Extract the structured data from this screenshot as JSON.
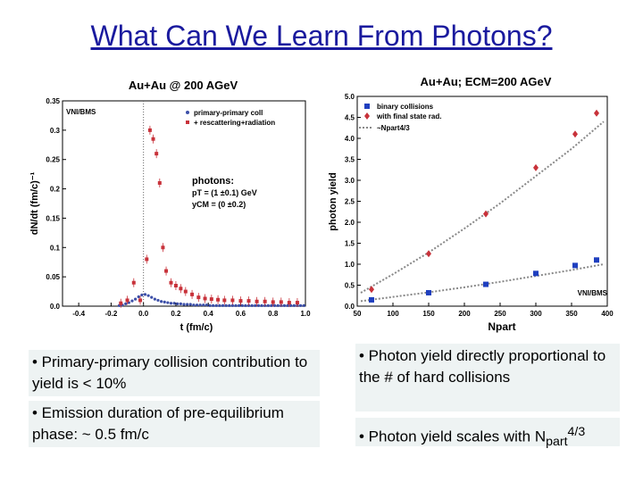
{
  "slide": {
    "title": "What Can We Learn From Photons?"
  },
  "bullets": {
    "b1": "• Primary-primary collision contribution to yield is < 10%",
    "b2": "• Emission duration of pre-equilibrium phase: ~ 0.5 fm/c",
    "b3": "• Photon yield directly proportional to the # of hard collisions",
    "b4_text": "• Photon yield scales with N",
    "b4_sub": "part",
    "b4_sup": "4/3"
  },
  "chart_data": [
    {
      "type": "scatter",
      "title": "Au+Au @ 200 AGeV",
      "xlabel": "t (fm/c)",
      "ylabel": "dN/dt (fm/c)⁻¹",
      "xlim": [
        -0.5,
        1.0
      ],
      "ylim": [
        0,
        0.35
      ],
      "xticks": [
        "-0.4",
        "-0.2",
        "0.0",
        "0.2",
        "0.4",
        "0.6",
        "0.8",
        "1.0"
      ],
      "yticks": [
        "0.0",
        "0.05",
        "0.1",
        "0.15",
        "0.2",
        "0.25",
        "0.3",
        "0.35"
      ],
      "corner_label": "VNI/BMS",
      "legend_position": "top-right",
      "annotation": {
        "title": "photons:",
        "line1": "pT = (1 ±0.1) GeV",
        "line2": "yCM = (0 ±0.2)"
      },
      "series": [
        {
          "name": "primary-primary coll",
          "color": "#3c4fa8",
          "marker": "circle",
          "x": [
            -0.15,
            -0.13,
            -0.11,
            -0.09,
            -0.07,
            -0.05,
            -0.03,
            -0.01,
            0.01,
            0.03,
            0.05,
            0.07,
            0.09,
            0.11,
            0.13,
            0.15,
            0.17,
            0.19,
            0.21,
            0.23,
            0.25,
            0.27,
            0.29,
            0.31,
            0.33,
            0.35,
            0.37,
            0.39,
            0.41,
            0.43,
            0.45,
            0.47,
            0.49,
            0.51,
            0.53,
            0.55,
            0.57,
            0.59,
            0.61,
            0.63,
            0.65,
            0.67,
            0.69,
            0.71,
            0.73,
            0.75,
            0.77,
            0.79,
            0.81,
            0.83,
            0.85,
            0.87,
            0.89,
            0.91,
            0.93,
            0.95,
            0.97,
            0.99
          ],
          "y": [
            0.001,
            0.002,
            0.004,
            0.006,
            0.009,
            0.012,
            0.016,
            0.019,
            0.02,
            0.018,
            0.015,
            0.012,
            0.01,
            0.008,
            0.007,
            0.006,
            0.005,
            0.005,
            0.004,
            0.004,
            0.003,
            0.003,
            0.003,
            0.002,
            0.002,
            0.002,
            0.002,
            0.002,
            0.001,
            0.001,
            0.001,
            0.001,
            0.001,
            0.001,
            0.001,
            0.001,
            0.001,
            0.001,
            0.001,
            0.001,
            0.001,
            0.001,
            0.001,
            0.001,
            0.001,
            0.001,
            0.001,
            0.001,
            0.001,
            0.001,
            0.001,
            0.001,
            0.001,
            0.001,
            0.001,
            0.001,
            0.001,
            0.001
          ]
        },
        {
          "name": "+ rescattering+radiation",
          "color": "#c8323a",
          "marker": "square",
          "x": [
            -0.14,
            -0.1,
            -0.06,
            -0.02,
            0.02,
            0.04,
            0.06,
            0.08,
            0.1,
            0.12,
            0.14,
            0.17,
            0.2,
            0.23,
            0.26,
            0.3,
            0.34,
            0.38,
            0.42,
            0.46,
            0.5,
            0.55,
            0.6,
            0.65,
            0.7,
            0.75,
            0.8,
            0.85,
            0.9,
            0.95
          ],
          "y": [
            0.005,
            0.01,
            0.04,
            0.01,
            0.08,
            0.3,
            0.285,
            0.26,
            0.21,
            0.1,
            0.06,
            0.04,
            0.035,
            0.03,
            0.025,
            0.02,
            0.015,
            0.013,
            0.012,
            0.011,
            0.01,
            0.01,
            0.009,
            0.009,
            0.008,
            0.008,
            0.007,
            0.007,
            0.006,
            0.006
          ]
        }
      ]
    },
    {
      "type": "scatter",
      "title": "Au+Au; ECM=200 AGeV",
      "xlabel": "Npart",
      "ylabel": "photon yield",
      "xlim": [
        50,
        400
      ],
      "ylim": [
        0,
        5.0
      ],
      "xticks": [
        "50",
        "100",
        "150",
        "200",
        "250",
        "300",
        "350",
        "400"
      ],
      "yticks": [
        "0.0",
        "0.5",
        "1.0",
        "1.5",
        "2.0",
        "2.5",
        "3.0",
        "3.5",
        "4.0",
        "4.5",
        "5.0"
      ],
      "corner_label": "VNI/BMS",
      "legend_position": "top-left",
      "series": [
        {
          "name": "binary collisions",
          "color": "#1f3fbf",
          "marker": "square",
          "x": [
            70,
            150,
            230,
            300,
            355,
            385
          ],
          "y": [
            0.15,
            0.32,
            0.52,
            0.78,
            0.97,
            1.1
          ]
        },
        {
          "name": "with final state rad.",
          "color": "#c8323a",
          "marker": "diamond",
          "x": [
            70,
            150,
            230,
            300,
            355,
            385
          ],
          "y": [
            0.4,
            1.25,
            2.2,
            3.3,
            4.1,
            4.6
          ]
        },
        {
          "name": "~Npart4/3",
          "color": "#888888",
          "marker": "dashed-line",
          "fit": [
            [
              55,
              0.32
            ],
            [
              100,
              0.76
            ],
            [
              150,
              1.28
            ],
            [
              200,
              1.85
            ],
            [
              250,
              2.45
            ],
            [
              300,
              3.1
            ],
            [
              350,
              3.75
            ],
            [
              395,
              4.4
            ]
          ],
          "fit_low": [
            [
              55,
              0.12
            ],
            [
              100,
              0.22
            ],
            [
              150,
              0.33
            ],
            [
              200,
              0.45
            ],
            [
              250,
              0.58
            ],
            [
              300,
              0.72
            ],
            [
              350,
              0.86
            ],
            [
              395,
              1.0
            ]
          ]
        }
      ]
    }
  ]
}
